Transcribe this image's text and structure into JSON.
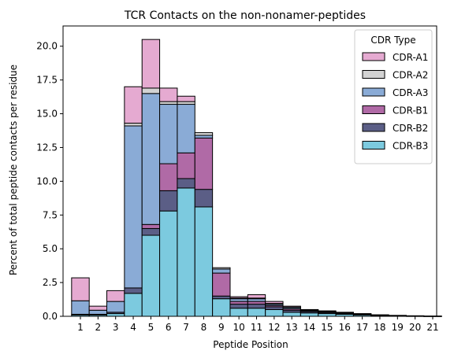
{
  "chart_data": {
    "type": "bar",
    "stacked": true,
    "title": "TCR Contacts on the non-nonamer-peptides",
    "xlabel": "Peptide Position",
    "ylabel": "Percent of total peptide contacts per residue",
    "ylim": [
      0,
      21.5
    ],
    "yticks": [
      "0.0",
      "2.5",
      "5.0",
      "7.5",
      "10.0",
      "12.5",
      "15.0",
      "17.5",
      "20.0"
    ],
    "yticks_values": [
      0,
      2.5,
      5,
      7.5,
      10,
      12.5,
      15,
      17.5,
      20
    ],
    "grid": false,
    "legend_title": "CDR Type",
    "legend_position": "top-right",
    "categories": [
      "1",
      "2",
      "3",
      "4",
      "5",
      "6",
      "7",
      "8",
      "9",
      "10",
      "11",
      "12",
      "13",
      "14",
      "15",
      "16",
      "17",
      "18",
      "19",
      "20",
      "21"
    ],
    "series": [
      {
        "name": "CDR-B3",
        "color": "#7ccadf",
        "values": [
          0.1,
          0.1,
          0.2,
          1.7,
          6.0,
          7.8,
          9.5,
          8.1,
          1.3,
          0.6,
          0.6,
          0.5,
          0.3,
          0.25,
          0.2,
          0.15,
          0.1,
          0.05,
          0.03,
          0.02,
          0.01
        ]
      },
      {
        "name": "CDR-B2",
        "color": "#5b5e86",
        "values": [
          0.05,
          0.05,
          0.1,
          0.4,
          0.5,
          1.5,
          0.7,
          1.3,
          0.2,
          0.3,
          0.3,
          0.2,
          0.15,
          0.1,
          0.08,
          0.06,
          0.05,
          0.03,
          0.02,
          0.01,
          0.01
        ]
      },
      {
        "name": "CDR-B1",
        "color": "#b06aa6",
        "values": [
          0.0,
          0.0,
          0.0,
          0.0,
          0.3,
          2.0,
          1.9,
          3.8,
          1.7,
          0.2,
          0.2,
          0.1,
          0.1,
          0.05,
          0.05,
          0.04,
          0.03,
          0.02,
          0.01,
          0.01,
          0.0
        ]
      },
      {
        "name": "CDR-A3",
        "color": "#8aabd6",
        "values": [
          1.0,
          0.3,
          0.8,
          12.0,
          9.7,
          4.4,
          3.6,
          0.2,
          0.3,
          0.2,
          0.2,
          0.1,
          0.1,
          0.05,
          0.05,
          0.03,
          0.02,
          0.01,
          0.01,
          0.0,
          0.0
        ]
      },
      {
        "name": "CDR-A2",
        "color": "#d3d3d3",
        "values": [
          0.0,
          0.0,
          0.0,
          0.2,
          0.4,
          0.2,
          0.2,
          0.2,
          0.1,
          0.05,
          0.05,
          0.05,
          0.03,
          0.02,
          0.01,
          0.01,
          0.0,
          0.0,
          0.0,
          0.0,
          0.0
        ]
      },
      {
        "name": "CDR-A1",
        "color": "#e5aad1",
        "values": [
          1.7,
          0.3,
          0.8,
          2.7,
          3.6,
          1.0,
          0.4,
          0.0,
          0.0,
          0.1,
          0.25,
          0.15,
          0.07,
          0.03,
          0.01,
          0.01,
          0.0,
          0.0,
          0.0,
          0.0,
          0.0
        ]
      }
    ],
    "legend_order": [
      "CDR-A1",
      "CDR-A2",
      "CDR-A3",
      "CDR-B1",
      "CDR-B2",
      "CDR-B3"
    ]
  }
}
